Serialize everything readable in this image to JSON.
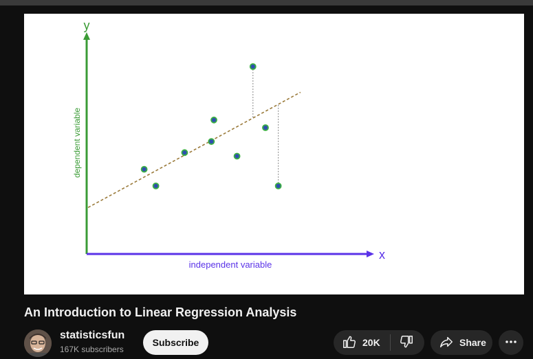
{
  "video": {
    "title": "An Introduction to Linear Regression Analysis"
  },
  "channel": {
    "name": "statisticsfun",
    "subscribers": "167K subscribers"
  },
  "actions": {
    "subscribe_label": "Subscribe",
    "like_count": "20K",
    "share_label": "Share"
  },
  "icons": [
    "like-icon",
    "dislike-icon",
    "share-icon",
    "more-icon"
  ],
  "colors": {
    "y_axis": "#3a9b35",
    "x_axis": "#5a32e8",
    "trend_line": "#9a7a3a",
    "point_fill": "#2f4fb0",
    "point_ring": "#3cb043"
  },
  "chart_data": {
    "type": "scatter",
    "title": "",
    "xlabel": "independent variable",
    "ylabel": "dependent variable",
    "x_axis_letter": "x",
    "y_axis_letter": "y",
    "grid": false,
    "xlim": [
      0,
      100
    ],
    "ylim": [
      0,
      100
    ],
    "points": [
      {
        "x": 20.2,
        "y": 45.2
      },
      {
        "x": 24.3,
        "y": 36.3
      },
      {
        "x": 34.4,
        "y": 54.1
      },
      {
        "x": 43.8,
        "y": 60.0
      },
      {
        "x": 44.7,
        "y": 71.5
      },
      {
        "x": 52.8,
        "y": 52.2
      },
      {
        "x": 58.4,
        "y": 100.0
      },
      {
        "x": 62.8,
        "y": 67.4
      },
      {
        "x": 67.3,
        "y": 36.3
      }
    ],
    "trend_line": {
      "x0": 0.5,
      "y0": 24.8,
      "x1": 75.1,
      "y1": 86.3,
      "style": "dashed"
    },
    "residuals": [
      {
        "x": 58.4,
        "y_point": 100.0,
        "y_line": 72.8
      },
      {
        "x": 67.3,
        "y_point": 36.3,
        "y_line": 79.6
      }
    ]
  }
}
